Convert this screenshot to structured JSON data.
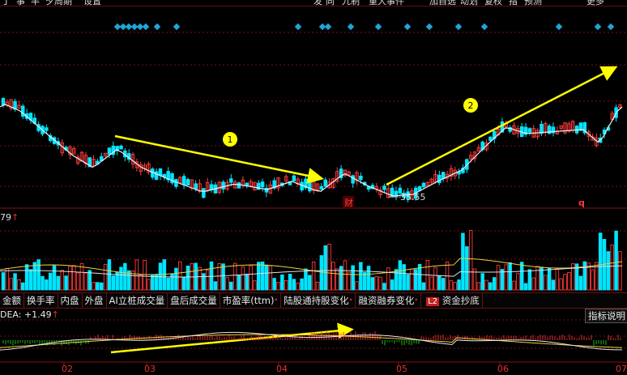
{
  "top_menu": [
    "丁",
    "事",
    "半",
    "夕周期",
    "设置",
    "发",
    "同",
    "九制",
    "重大事件",
    "加自选",
    "动划",
    "复权",
    "指",
    "预测",
    "更多"
  ],
  "price_panel": {
    "low_marker": "35.55",
    "events": [
      {
        "label": "财",
        "color": "#e53030"
      },
      {
        "label": "q",
        "color": "#e53030"
      }
    ],
    "annotations": [
      {
        "label": "1",
        "color": "#ffff00"
      },
      {
        "label": "2",
        "color": "#ffff00"
      }
    ]
  },
  "volume_panel": {
    "label": "79",
    "arrow": "↑"
  },
  "indicator_tabs": [
    {
      "label": "金额",
      "dot": false
    },
    {
      "label": "换手率",
      "dot": false
    },
    {
      "label": "内盘",
      "dot": false
    },
    {
      "label": "外盘",
      "dot": false
    },
    {
      "label": "AI立桩成交量",
      "dot": false
    },
    {
      "label": "盘后成交量",
      "dot": false
    },
    {
      "label": "市盈率(ttm)",
      "dot": true
    },
    {
      "label": "陆股通持股变化",
      "dot": true
    },
    {
      "label": "融资融券变化",
      "dot": true
    },
    {
      "label": "资金抄底",
      "dot": false,
      "badge": "L2"
    }
  ],
  "macd_panel": {
    "label": "DEA: +1.49",
    "arrow": "↑",
    "button": "指标说明"
  },
  "x_axis": [
    "02",
    "03",
    "04",
    "05",
    "06",
    "07"
  ],
  "colors": {
    "up": "#ff3b3b",
    "down": "#00e5ff",
    "annotation": "#ffff00",
    "grid": "#7a1010",
    "diamond": "#1fa5d8"
  }
}
